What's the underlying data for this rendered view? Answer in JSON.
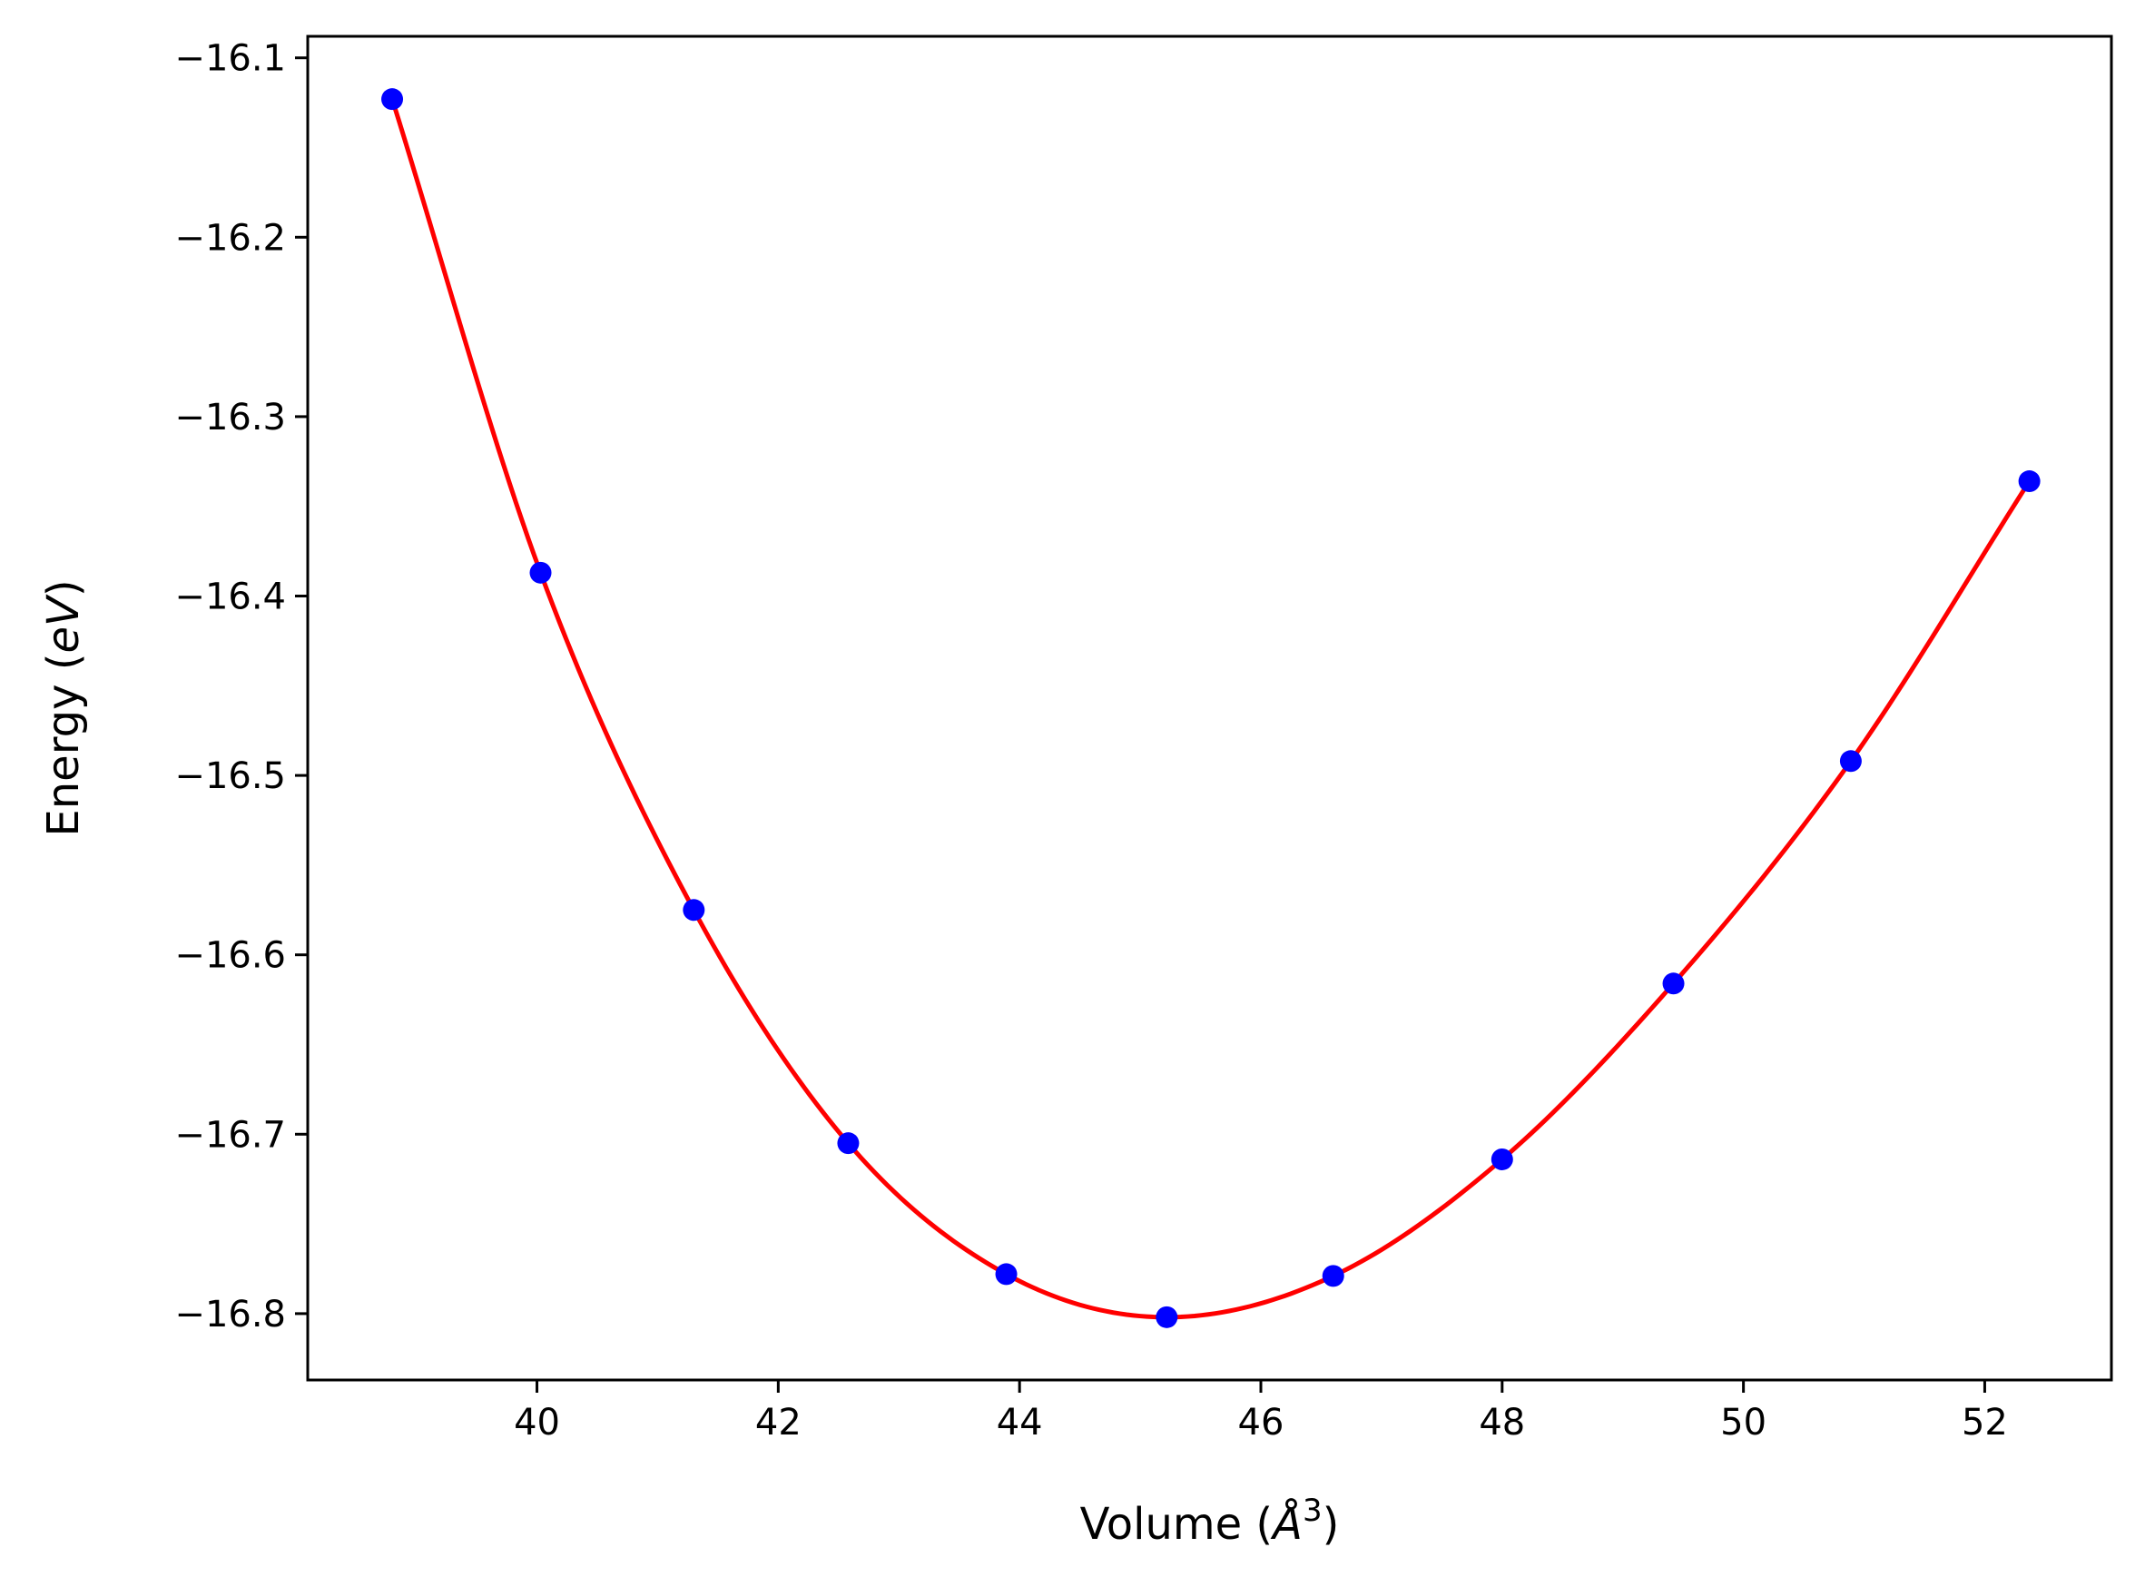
{
  "chart_data": {
    "type": "scatter",
    "title": "",
    "xlabel": {
      "prefix": "Volume (",
      "symbol": "Å",
      "sup": "3",
      "suffix": ")"
    },
    "ylabel": {
      "prefix": "Energy (",
      "unit": "eV",
      "suffix": ")"
    },
    "xlim": [
      38.1,
      53.05
    ],
    "ylim": [
      -16.837,
      -16.088
    ],
    "xticks": [
      40,
      42,
      44,
      46,
      48,
      50,
      52
    ],
    "xtick_labels": [
      "40",
      "42",
      "44",
      "46",
      "48",
      "50",
      "52"
    ],
    "yticks": [
      -16.1,
      -16.2,
      -16.3,
      -16.4,
      -16.5,
      -16.6,
      -16.7,
      -16.8
    ],
    "ytick_labels": [
      "−16.1",
      "−16.2",
      "−16.3",
      "−16.4",
      "−16.5",
      "−16.6",
      "−16.7",
      "−16.8"
    ],
    "grid": false,
    "series": [
      {
        "kind": "markers",
        "color": "#0000ff",
        "x": [
          38.8,
          40.03,
          41.3,
          42.58,
          43.89,
          45.22,
          46.6,
          48.0,
          49.42,
          50.89,
          52.37
        ],
        "y": [
          -16.123,
          -16.387,
          -16.575,
          -16.705,
          -16.778,
          -16.802,
          -16.779,
          -16.714,
          -16.616,
          -16.492,
          -16.336
        ]
      },
      {
        "kind": "fit-line",
        "color": "#ff0000",
        "x": [
          38.8,
          40.03,
          41.3,
          42.58,
          43.89,
          45.22,
          46.6,
          48.0,
          49.42,
          50.89,
          52.37
        ],
        "y": [
          -16.123,
          -16.387,
          -16.575,
          -16.705,
          -16.778,
          -16.802,
          -16.779,
          -16.714,
          -16.616,
          -16.492,
          -16.336
        ]
      }
    ]
  }
}
